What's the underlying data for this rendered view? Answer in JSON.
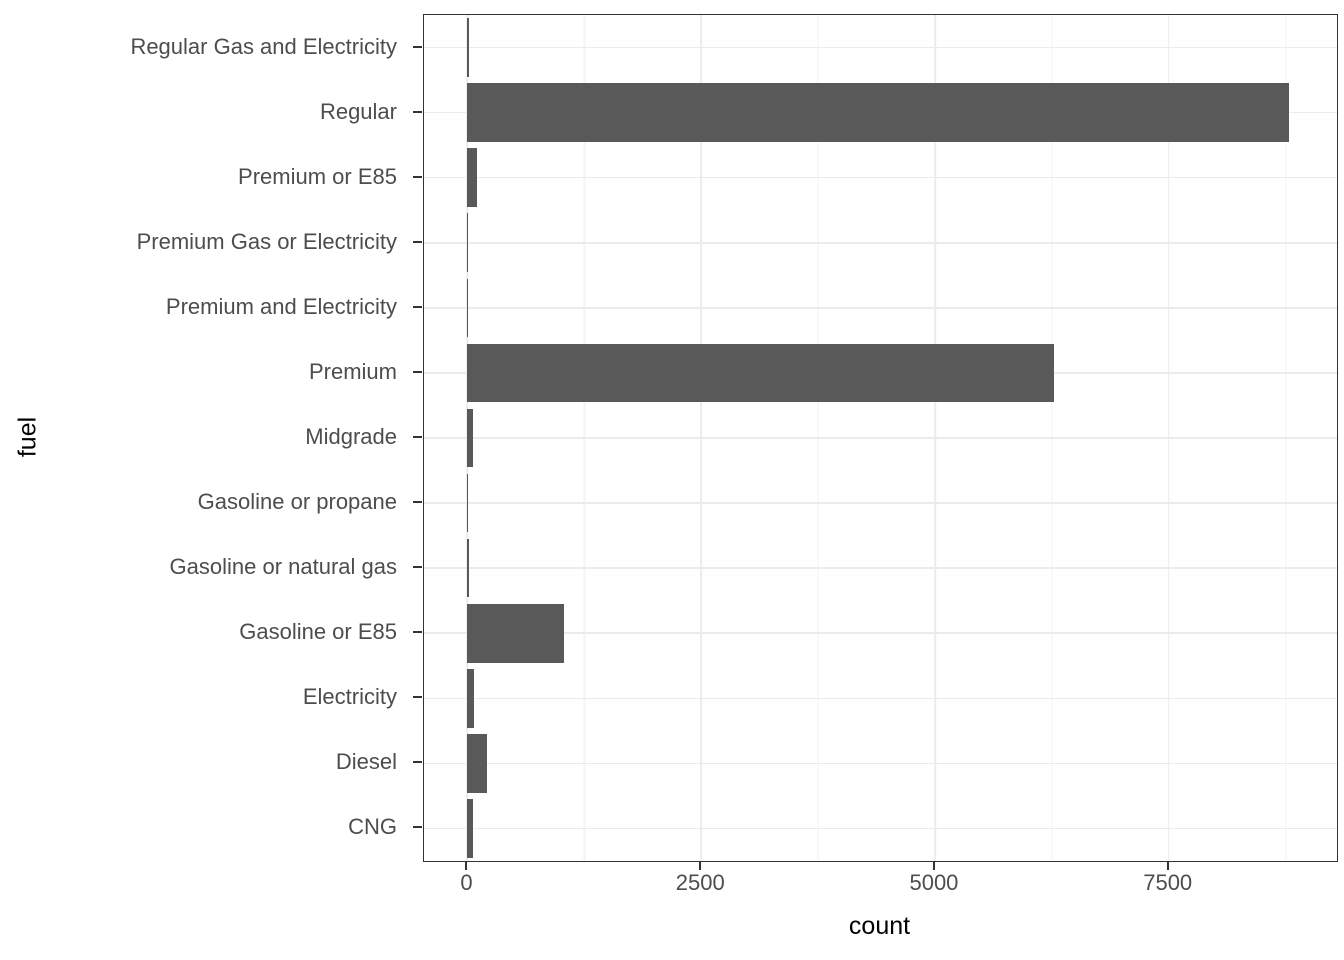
{
  "chart_data": {
    "type": "bar",
    "orientation": "horizontal",
    "title": "",
    "xlabel": "count",
    "ylabel": "fuel",
    "categories": [
      "Regular Gas and Electricity",
      "Regular",
      "Premium or E85",
      "Premium Gas or Electricity",
      "Premium and Electricity",
      "Premium",
      "Midgrade",
      "Gasoline or propane",
      "Gasoline or natural gas",
      "Gasoline or E85",
      "Electricity",
      "Diesel",
      "CNG"
    ],
    "values": [
      20,
      8790,
      100,
      10,
      2,
      6270,
      55,
      8,
      20,
      1030,
      65,
      210,
      55
    ],
    "x_tick_values": [
      0,
      2500,
      5000,
      7500
    ],
    "x_tick_labels": [
      "0",
      "2500",
      "5000",
      "7500"
    ],
    "x_minor_tick_values": [
      1250,
      3750,
      6250,
      8750
    ],
    "xlim": [
      -465,
      9300
    ],
    "bar_fraction": 0.9,
    "grid": "on",
    "legend": "none",
    "colors": {
      "bar_fill": "#595959",
      "axis_text": "#4d4d4d",
      "axis_title": "#000000",
      "panel_border": "#333333",
      "grid_major": "#ebebeb",
      "grid_minor": "#f4f4f4",
      "tick_mark": "#333333",
      "background": "#ffffff"
    }
  }
}
